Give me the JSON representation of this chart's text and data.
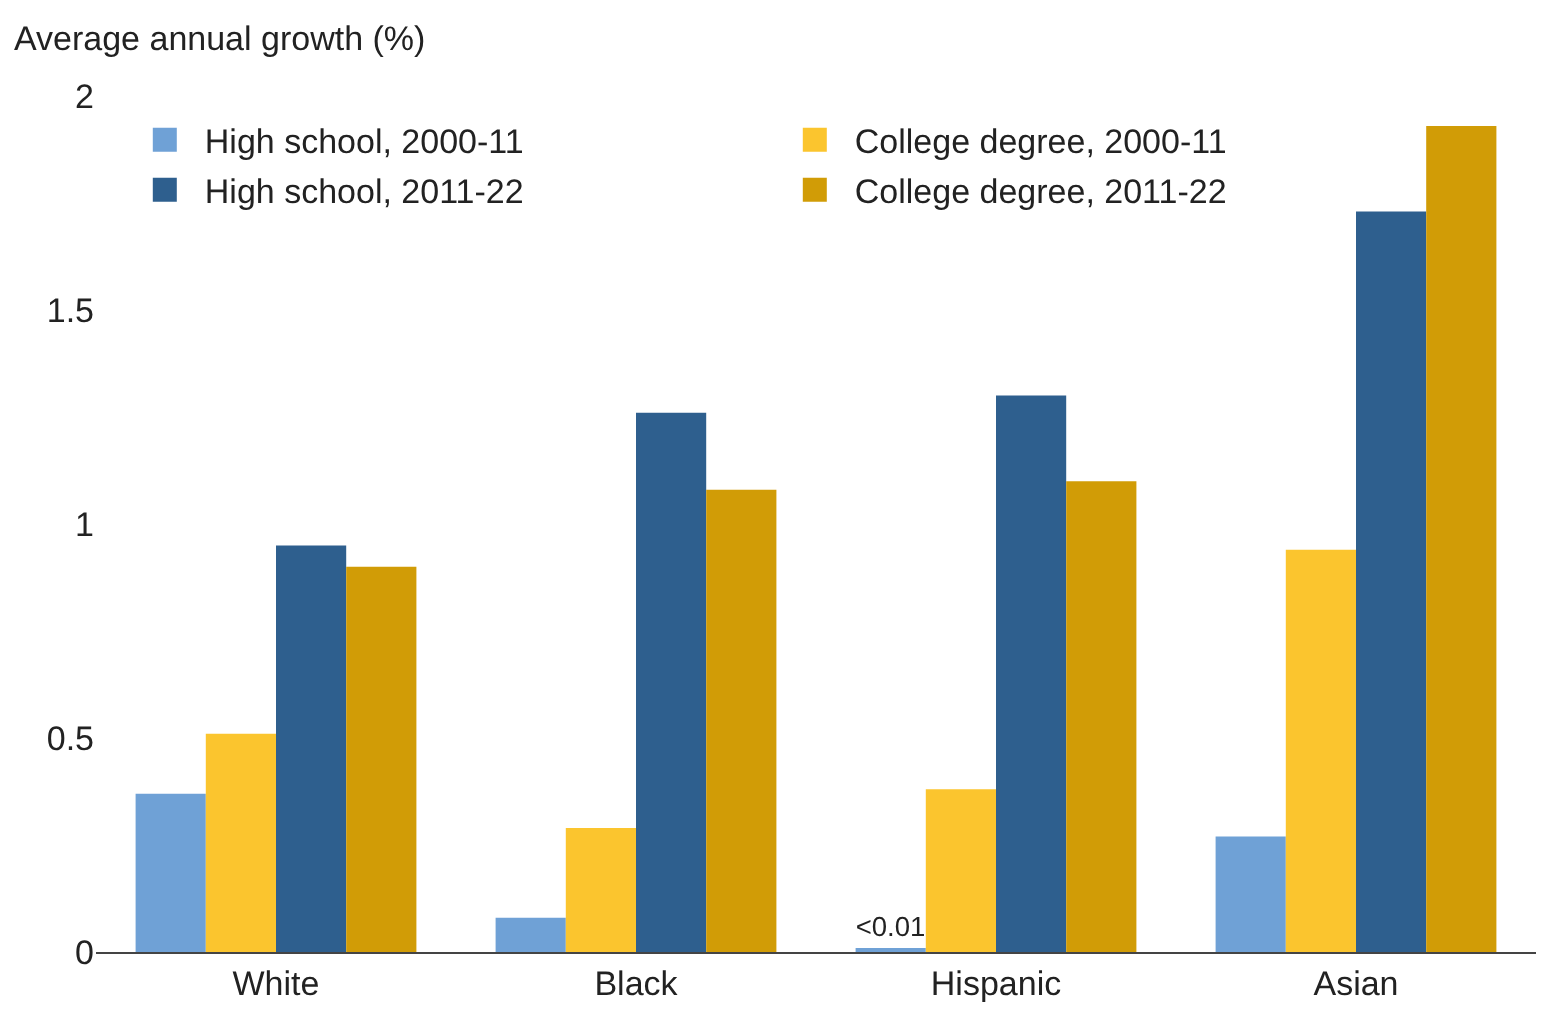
{
  "chart_data": {
    "type": "bar",
    "ylabel": "Average annual growth (%)",
    "categories": [
      "White",
      "Black",
      "Hispanic",
      "Asian"
    ],
    "series": [
      {
        "name": "High school, 2000-11",
        "color": "#6fa1d6",
        "values": [
          0.37,
          0.08,
          0.005,
          0.27
        ],
        "value_labels": [
          null,
          null,
          "<0.01",
          null
        ]
      },
      {
        "name": "College degree, 2000-11",
        "color": "#fbc52e",
        "values": [
          0.51,
          0.29,
          0.38,
          0.94
        ]
      },
      {
        "name": "High school, 2011-22",
        "color": "#2e5f8e",
        "values": [
          0.95,
          1.26,
          1.3,
          1.73
        ]
      },
      {
        "name": "College degree, 2011-22",
        "color": "#d19c06",
        "values": [
          0.9,
          1.08,
          1.1,
          1.93
        ]
      }
    ],
    "ylim": [
      0,
      2
    ],
    "yticks": [
      0,
      0.5,
      1,
      1.5,
      2
    ],
    "grid": false,
    "legend": "top left"
  }
}
